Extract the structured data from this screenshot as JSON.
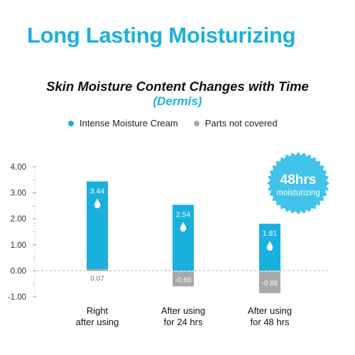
{
  "headline": "Long Lasting Moisturizing",
  "badge": {
    "line1": "48hrs",
    "line2": "moisturizing"
  },
  "colors": {
    "accent": "#1ab0de",
    "bar_primary": "#1ab0de",
    "bar_secondary": "#a8a8a8"
  },
  "chart_data": {
    "type": "bar",
    "title": "Skin Moisture Content Changes with Time",
    "subtitle": "(Dermis)",
    "categories": [
      "Right\nafter using",
      "After using\nfor 24 hrs",
      "After using\nfor 48 hrs"
    ],
    "series": [
      {
        "name": "Intense Moisture Cream",
        "values": [
          3.44,
          2.54,
          1.81
        ]
      },
      {
        "name": "Parts not covered",
        "values": [
          0.07,
          -0.6,
          -0.86
        ]
      }
    ],
    "ylim": [
      -1.0,
      4.0
    ],
    "yticks": [
      "4.00",
      "3.00",
      "2.00",
      "1.00",
      "0.00",
      "-1.00"
    ],
    "grid": false,
    "legend": "top"
  }
}
